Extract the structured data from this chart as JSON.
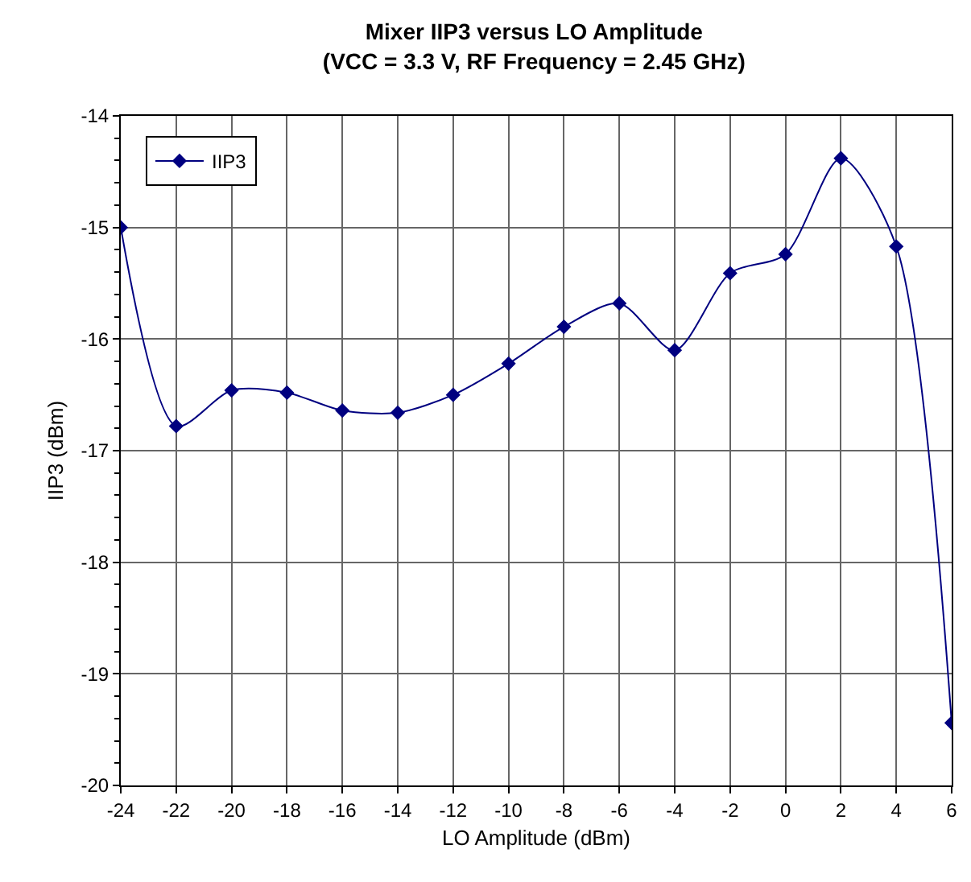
{
  "chart_data": {
    "type": "line",
    "title": "Mixer IIP3 versus LO Amplitude",
    "subtitle": "(VCC = 3.3 V, RF Frequency = 2.45 GHz)",
    "xlabel": "LO Amplitude (dBm)",
    "ylabel": "IIP3 (dBm)",
    "x": [
      -24,
      -22,
      -20,
      -18,
      -16,
      -14,
      -12,
      -10,
      -8,
      -6,
      -4,
      -2,
      0,
      2,
      4,
      6
    ],
    "series": [
      {
        "name": "IIP3",
        "color": "#000080",
        "values": [
          -15.0,
          -16.78,
          -16.46,
          -16.48,
          -16.64,
          -16.66,
          -16.5,
          -16.22,
          -15.89,
          -15.68,
          -16.1,
          -15.41,
          -15.24,
          -14.38,
          -15.17,
          -19.44
        ]
      }
    ],
    "xlim": [
      -24,
      6
    ],
    "xticks": [
      -24,
      -22,
      -20,
      -18,
      -16,
      -14,
      -12,
      -10,
      -8,
      -6,
      -4,
      -2,
      0,
      2,
      4,
      6
    ],
    "ylim": [
      -20,
      -14
    ],
    "yticks": [
      -20,
      -19,
      -18,
      -17,
      -16,
      -15,
      -14
    ],
    "grid": true,
    "legend": "top left",
    "marker": "diamond",
    "line_style": "solid"
  }
}
